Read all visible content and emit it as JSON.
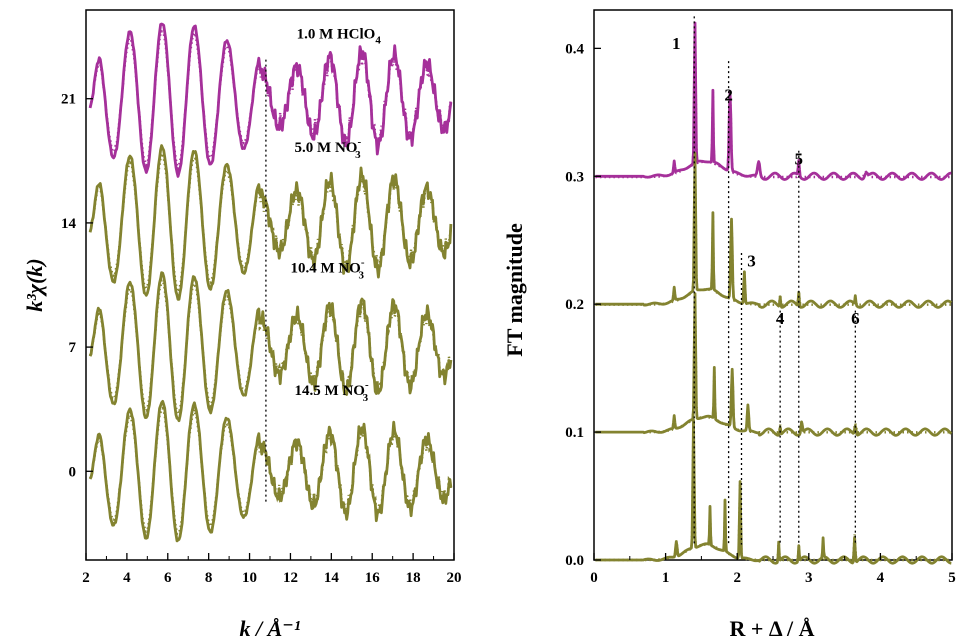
{
  "colors": {
    "hclo4": "#A5309A",
    "nitrate": "#838330"
  },
  "chart_data": [
    {
      "type": "line",
      "xlabel": "k / Å⁻¹",
      "ylabel": "k³χ(k)",
      "xlim": [
        2,
        20
      ],
      "ylim": [
        -5,
        26
      ],
      "x_ticks": [
        "2",
        "4",
        "6",
        "8",
        "10",
        "12",
        "14",
        "16",
        "18",
        "20"
      ],
      "y_ticks": [
        "0",
        "7",
        "14",
        "21"
      ],
      "series": [
        {
          "name": "1.0 M HClO4",
          "label_main": "1.0 M HClO",
          "label_sub": "4",
          "label_sup": "",
          "offset": 21,
          "color_key": "hclo4",
          "amp": 1.0
        },
        {
          "name": "5.0 M NO3-",
          "label_main": "5.0 M NO",
          "label_sub": "3",
          "label_sup": "-",
          "offset": 14,
          "color_key": "nitrate",
          "amp": 1.0
        },
        {
          "name": "10.4 M NO3-",
          "label_main": "10.4 M NO",
          "label_sub": "3",
          "label_sup": "-",
          "offset": 7,
          "color_key": "nitrate",
          "amp": 0.97
        },
        {
          "name": "14.5 M NO3-",
          "label_main": "14.5 M NO",
          "label_sub": "3",
          "label_sup": "-",
          "offset": 0,
          "color_key": "nitrate",
          "amp": 0.92
        }
      ],
      "reference_lines": [
        10.8
      ],
      "line_styles": {
        "data": "solid",
        "fit": "dotted"
      }
    },
    {
      "type": "line",
      "xlabel": "R + Δ / Å",
      "ylabel": "FT magnitude",
      "xlim": [
        0,
        5
      ],
      "ylim": [
        0,
        0.43
      ],
      "x_ticks": [
        "0",
        "1",
        "2",
        "3",
        "4",
        "5"
      ],
      "y_ticks": [
        "0.0",
        "0.1",
        "0.2",
        "0.3",
        "0.4"
      ],
      "series": [
        {
          "name": "1.0 M HClO4",
          "baseline": 0.3,
          "color_key": "hclo4",
          "peaks": [
            [
              1.12,
              0.009,
              0.008
            ],
            [
              1.41,
              0.109,
              0.009
            ],
            [
              1.66,
              0.056,
              0.006
            ],
            [
              1.9,
              0.062,
              0.012
            ],
            [
              2.3,
              0.011,
              0.015
            ],
            [
              2.86,
              0.012,
              0.008
            ],
            [
              3.8,
              0.004,
              0.02
            ]
          ]
        },
        {
          "name": "5.0 M NO3-",
          "baseline": 0.2,
          "color_key": "nitrate",
          "peaks": [
            [
              1.12,
              0.01,
              0.008
            ],
            [
              1.41,
              0.107,
              0.009
            ],
            [
              1.66,
              0.06,
              0.006
            ],
            [
              1.92,
              0.062,
              0.011
            ],
            [
              2.1,
              0.025,
              0.008
            ],
            [
              2.6,
              0.008,
              0.006
            ],
            [
              2.86,
              0.011,
              0.007
            ],
            [
              3.65,
              0.007,
              0.006
            ]
          ]
        },
        {
          "name": "10.4 M NO3-",
          "baseline": 0.1,
          "color_key": "nitrate",
          "peaks": [
            [
              1.12,
              0.01,
              0.008
            ],
            [
              1.41,
              0.098,
              0.009
            ],
            [
              1.68,
              0.04,
              0.006
            ],
            [
              1.93,
              0.045,
              0.011
            ],
            [
              2.15,
              0.02,
              0.01
            ],
            [
              2.6,
              0.006,
              0.006
            ],
            [
              2.9,
              0.009,
              0.01
            ],
            [
              3.65,
              0.007,
              0.01
            ]
          ]
        },
        {
          "name": "14.5 M NO3-",
          "baseline": 0.0,
          "color_key": "nitrate",
          "peaks": [
            [
              1.15,
              0.012,
              0.01
            ],
            [
              1.39,
              0.1,
              0.009
            ],
            [
              1.62,
              0.03,
              0.006
            ],
            [
              1.83,
              0.04,
              0.006
            ],
            [
              2.04,
              0.06,
              0.008
            ],
            [
              2.58,
              0.015,
              0.006
            ],
            [
              2.86,
              0.012,
              0.006
            ],
            [
              3.2,
              0.015,
              0.006
            ],
            [
              3.64,
              0.02,
              0.008
            ]
          ]
        }
      ],
      "reference_lines": [
        {
          "label": "1",
          "x": 1.4
        },
        {
          "label": "2",
          "x": 1.88
        },
        {
          "label": "3",
          "x": 2.06
        },
        {
          "label": "4",
          "x": 2.6
        },
        {
          "label": "5",
          "x": 2.86
        },
        {
          "label": "6",
          "x": 3.65
        }
      ],
      "line_styles": {
        "data": "solid",
        "fit": "dotted"
      }
    }
  ]
}
